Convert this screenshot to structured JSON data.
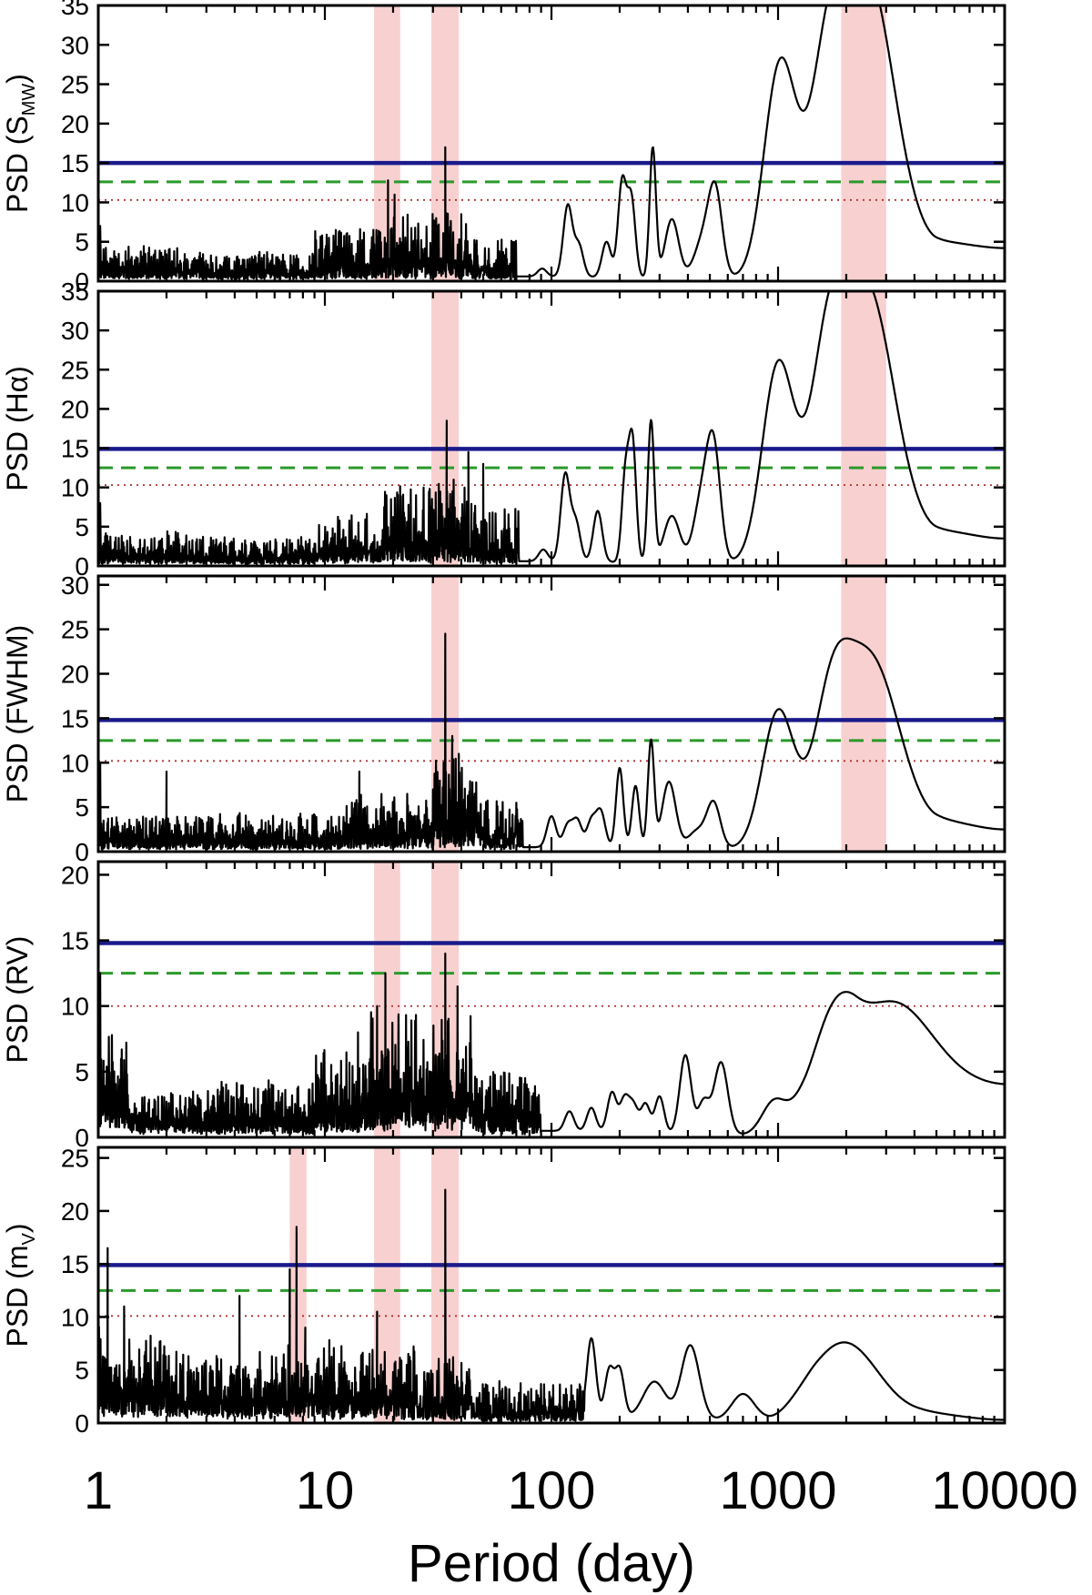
{
  "chart_data": [
    {
      "type": "line",
      "ylabel_main": "PSD (S",
      "ylabel_sub": "MW",
      "ylabel_close": ")",
      "xscale": "log",
      "xlim": [
        1,
        10000
      ],
      "ylim": [
        0,
        35
      ],
      "yticks": [
        "0",
        "5",
        "10",
        "15",
        "20",
        "25",
        "30",
        "35"
      ],
      "thresholds": [
        {
          "level": 15.0,
          "style": "solid",
          "color": "#1a1a8c"
        },
        {
          "level": 12.6,
          "style": "dashed",
          "color": "#2a9a2a"
        },
        {
          "level": 10.3,
          "style": "dotted",
          "color": "#b03030"
        }
      ],
      "highlight_bands": [
        [
          16.5,
          21.5
        ],
        [
          29.5,
          39
        ],
        [
          1900,
          3000
        ]
      ],
      "noise": [
        {
          "from": 1.0,
          "to": 3.0,
          "base": 2.0,
          "amp": 3.0
        },
        {
          "from": 3.0,
          "to": 9.0,
          "base": 1.7,
          "amp": 2.6
        },
        {
          "from": 9.0,
          "to": 16.0,
          "base": 2.2,
          "amp": 5.0
        },
        {
          "from": 16.0,
          "to": 45.0,
          "base": 2.4,
          "amp": 7.0
        },
        {
          "from": 45.0,
          "to": 70.0,
          "base": 1.4,
          "amp": 4.5
        }
      ],
      "spikes": [
        [
          1.02,
          7.0
        ],
        [
          19.0,
          12.8
        ],
        [
          20.3,
          11.0
        ],
        [
          34.0,
          17.0
        ],
        [
          31.0,
          8.0
        ],
        [
          40.0,
          8.5
        ]
      ],
      "peaks": [
        [
          91,
          1.0,
          0.02
        ],
        [
          118,
          9.0,
          0.02
        ],
        [
          132,
          4.0,
          0.02
        ],
        [
          175,
          4.5,
          0.02
        ],
        [
          205,
          12.0,
          0.018
        ],
        [
          225,
          10.0,
          0.018
        ],
        [
          280,
          16.5,
          0.014
        ],
        [
          340,
          7.5,
          0.03
        ],
        [
          470,
          5.0,
          0.04
        ],
        [
          530,
          10.0,
          0.03
        ],
        [
          1020,
          26.0,
          0.07
        ],
        [
          1650,
          23.0,
          0.08
        ],
        [
          2450,
          30.0,
          0.11
        ]
      ],
      "baseline": [
        [
          70,
          0.6
        ],
        [
          700,
          0.3
        ],
        [
          1300,
          2.0
        ],
        [
          3000,
          9.0
        ],
        [
          5000,
          5.0
        ],
        [
          10000,
          4.2
        ]
      ]
    },
    {
      "type": "line",
      "ylabel_main": "PSD (Hα)",
      "ylabel_sub": "",
      "ylabel_close": "",
      "xscale": "log",
      "xlim": [
        1,
        10000
      ],
      "ylim": [
        0,
        35
      ],
      "yticks": [
        "0",
        "5",
        "10",
        "15",
        "20",
        "25",
        "30",
        "35"
      ],
      "thresholds": [
        {
          "level": 14.9,
          "style": "solid",
          "color": "#1a1a8c"
        },
        {
          "level": 12.5,
          "style": "dashed",
          "color": "#2a9a2a"
        },
        {
          "level": 10.3,
          "style": "dotted",
          "color": "#b03030"
        }
      ],
      "highlight_bands": [
        [
          29.5,
          39
        ],
        [
          1900,
          3000
        ]
      ],
      "noise": [
        {
          "from": 1.0,
          "to": 3.0,
          "base": 1.8,
          "amp": 3.0
        },
        {
          "from": 3.0,
          "to": 9.0,
          "base": 1.6,
          "amp": 2.6
        },
        {
          "from": 9.0,
          "to": 18.0,
          "base": 2.4,
          "amp": 5.0
        },
        {
          "from": 18.0,
          "to": 45.0,
          "base": 3.0,
          "amp": 8.5
        },
        {
          "from": 45.0,
          "to": 72.0,
          "base": 2.0,
          "amp": 6.0
        }
      ],
      "spikes": [
        [
          1.02,
          8.0
        ],
        [
          34.5,
          18.5
        ],
        [
          43.0,
          14.5
        ],
        [
          50.0,
          13.0
        ],
        [
          37.0,
          11.0
        ]
      ],
      "peaks": [
        [
          92,
          1.5,
          0.02
        ],
        [
          115,
          11.0,
          0.02
        ],
        [
          128,
          5.0,
          0.02
        ],
        [
          160,
          6.5,
          0.02
        ],
        [
          212,
          11.0,
          0.016
        ],
        [
          228,
          15.0,
          0.016
        ],
        [
          275,
          18.0,
          0.014
        ],
        [
          340,
          6.0,
          0.035
        ],
        [
          460,
          8.0,
          0.035
        ],
        [
          520,
          14.0,
          0.03
        ],
        [
          1000,
          24.5,
          0.07
        ],
        [
          1650,
          23.0,
          0.08
        ],
        [
          2450,
          27.5,
          0.11
        ]
      ],
      "baseline": [
        [
          72,
          0.6
        ],
        [
          700,
          0.3
        ],
        [
          1300,
          1.5
        ],
        [
          3000,
          8.0
        ],
        [
          5000,
          4.5
        ],
        [
          10000,
          3.5
        ]
      ]
    },
    {
      "type": "line",
      "ylabel_main": "PSD (FWHM)",
      "ylabel_sub": "",
      "ylabel_close": "",
      "xscale": "log",
      "xlim": [
        1,
        10000
      ],
      "ylim": [
        0,
        31
      ],
      "yticks": [
        "0",
        "5",
        "10",
        "15",
        "20",
        "25",
        "30"
      ],
      "thresholds": [
        {
          "level": 14.8,
          "style": "solid",
          "color": "#1a1a8c"
        },
        {
          "level": 12.5,
          "style": "dashed",
          "color": "#2a9a2a"
        },
        {
          "level": 10.2,
          "style": "dotted",
          "color": "#b03030"
        }
      ],
      "highlight_bands": [
        [
          29.5,
          39
        ],
        [
          1900,
          3000
        ]
      ],
      "noise": [
        {
          "from": 1.0,
          "to": 3.0,
          "base": 1.8,
          "amp": 3.0
        },
        {
          "from": 3.0,
          "to": 12.0,
          "base": 1.8,
          "amp": 3.0
        },
        {
          "from": 12.0,
          "to": 30.0,
          "base": 2.2,
          "amp": 5.0
        },
        {
          "from": 30.0,
          "to": 48.0,
          "base": 3.5,
          "amp": 8.0
        },
        {
          "from": 48.0,
          "to": 75.0,
          "base": 1.8,
          "amp": 5.0
        }
      ],
      "spikes": [
        [
          1.02,
          10.0
        ],
        [
          34.0,
          24.5
        ],
        [
          36.5,
          13.0
        ],
        [
          39.0,
          11.0
        ],
        [
          14.2,
          9.0
        ],
        [
          2.0,
          9.0
        ]
      ],
      "peaks": [
        [
          100,
          3.5,
          0.02
        ],
        [
          118,
          2.5,
          0.02
        ],
        [
          130,
          3.0,
          0.02
        ],
        [
          150,
          3.0,
          0.02
        ],
        [
          165,
          4.0,
          0.02
        ],
        [
          200,
          9.0,
          0.016
        ],
        [
          235,
          7.0,
          0.016
        ],
        [
          275,
          12.0,
          0.014
        ],
        [
          330,
          7.5,
          0.03
        ],
        [
          440,
          2.0,
          0.04
        ],
        [
          520,
          5.0,
          0.03
        ],
        [
          1000,
          15.0,
          0.07
        ],
        [
          1700,
          13.0,
          0.08
        ],
        [
          2500,
          16.0,
          0.12
        ]
      ],
      "baseline": [
        [
          75,
          0.5
        ],
        [
          700,
          0.3
        ],
        [
          1300,
          1.0
        ],
        [
          3000,
          6.0
        ],
        [
          5000,
          3.5
        ],
        [
          10000,
          2.5
        ]
      ]
    },
    {
      "type": "line",
      "ylabel_main": "PSD (RV)",
      "ylabel_sub": "",
      "ylabel_close": "",
      "xscale": "log",
      "xlim": [
        1,
        10000
      ],
      "ylim": [
        0,
        21
      ],
      "yticks": [
        "0",
        "5",
        "10",
        "15",
        "20"
      ],
      "thresholds": [
        {
          "level": 14.8,
          "style": "solid",
          "color": "#1a1a8c"
        },
        {
          "level": 12.5,
          "style": "dashed",
          "color": "#2a9a2a"
        },
        {
          "level": 10.0,
          "style": "dotted",
          "color": "#b03030"
        }
      ],
      "highlight_bands": [
        [
          16.5,
          21.5
        ],
        [
          29.5,
          39
        ]
      ],
      "noise": [
        {
          "from": 1.0,
          "to": 1.35,
          "base": 5.0,
          "amp": 4.0
        },
        {
          "from": 1.35,
          "to": 3.0,
          "base": 1.8,
          "amp": 2.6
        },
        {
          "from": 3.0,
          "to": 9.0,
          "base": 1.8,
          "amp": 3.0
        },
        {
          "from": 9.0,
          "to": 16.0,
          "base": 2.8,
          "amp": 5.0
        },
        {
          "from": 16.0,
          "to": 45.0,
          "base": 4.0,
          "amp": 6.5
        },
        {
          "from": 45.0,
          "to": 90.0,
          "base": 1.8,
          "amp": 4.0
        }
      ],
      "spikes": [
        [
          1.02,
          12.5
        ],
        [
          18.5,
          12.5
        ],
        [
          17.0,
          10.0
        ],
        [
          34.0,
          14.0
        ],
        [
          38.5,
          11.5
        ],
        [
          14.0,
          8.0
        ]
      ],
      "peaks": [
        [
          120,
          1.5,
          0.02
        ],
        [
          150,
          1.8,
          0.02
        ],
        [
          185,
          3.0,
          0.02
        ],
        [
          210,
          2.5,
          0.02
        ],
        [
          230,
          2.0,
          0.02
        ],
        [
          260,
          2.2,
          0.02
        ],
        [
          300,
          2.8,
          0.02
        ],
        [
          390,
          6.0,
          0.025
        ],
        [
          470,
          2.5,
          0.025
        ],
        [
          560,
          5.5,
          0.03
        ],
        [
          950,
          2.0,
          0.05
        ],
        [
          1700,
          6.0,
          0.1
        ],
        [
          3200,
          6.0,
          0.16
        ]
      ],
      "baseline": [
        [
          90,
          0.5
        ],
        [
          700,
          0.2
        ],
        [
          1300,
          1.0
        ],
        [
          2200,
          4.0
        ],
        [
          5000,
          4.5
        ],
        [
          10000,
          4.0
        ]
      ]
    },
    {
      "type": "line",
      "ylabel_main": "PSD (m",
      "ylabel_sub": "V",
      "ylabel_close": ")",
      "xscale": "log",
      "xlim": [
        1,
        10000
      ],
      "ylim": [
        0,
        26
      ],
      "yticks": [
        "0",
        "5",
        "10",
        "15",
        "20",
        "25"
      ],
      "thresholds": [
        {
          "level": 14.9,
          "style": "solid",
          "color": "#1a1a8c"
        },
        {
          "level": 12.5,
          "style": "dashed",
          "color": "#2a9a2a"
        },
        {
          "level": 10.1,
          "style": "dotted",
          "color": "#b03030"
        }
      ],
      "highlight_bands": [
        [
          7.0,
          8.3
        ],
        [
          16.5,
          21.5
        ],
        [
          29.5,
          39
        ]
      ],
      "noise": [
        {
          "from": 1.0,
          "to": 2.0,
          "base": 4.0,
          "amp": 6.0
        },
        {
          "from": 2.0,
          "to": 6.0,
          "base": 3.0,
          "amp": 5.0
        },
        {
          "from": 6.0,
          "to": 20.0,
          "base": 3.0,
          "amp": 5.5
        },
        {
          "from": 20.0,
          "to": 45.0,
          "base": 2.2,
          "amp": 5.5
        },
        {
          "from": 45.0,
          "to": 140.0,
          "base": 1.2,
          "amp": 3.0
        }
      ],
      "spikes": [
        [
          1.1,
          16.5
        ],
        [
          7.5,
          18.5
        ],
        [
          7.0,
          14.5
        ],
        [
          34.0,
          22.0
        ],
        [
          4.2,
          12.0
        ],
        [
          17.0,
          10.5
        ],
        [
          8.2,
          9.0
        ],
        [
          1.3,
          11.0
        ]
      ],
      "peaks": [
        [
          150,
          7.5,
          0.02
        ],
        [
          180,
          4.5,
          0.02
        ],
        [
          200,
          4.5,
          0.02
        ],
        [
          285,
          3.5,
          0.05
        ],
        [
          410,
          7.0,
          0.04
        ],
        [
          700,
          2.5,
          0.05
        ],
        [
          2000,
          5.8,
          0.14
        ]
      ],
      "baseline": [
        [
          140,
          0.5
        ],
        [
          900,
          0.2
        ],
        [
          1500,
          2.0
        ],
        [
          4000,
          1.0
        ],
        [
          10000,
          0.3
        ]
      ]
    }
  ],
  "x_axis": {
    "ticks": [
      "1",
      "10",
      "100",
      "1000",
      "10000"
    ],
    "tick_values": [
      1,
      10,
      100,
      1000,
      10000
    ],
    "label": "Period (day)"
  },
  "colors": {
    "band": "#f8d0d0",
    "series": "#000000",
    "solid": "#1a1a8c",
    "dashed": "#2a9a2a",
    "dotted": "#b03030"
  }
}
